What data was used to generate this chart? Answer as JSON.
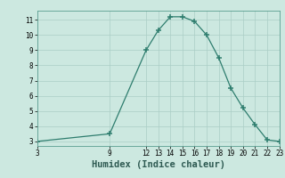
{
  "x": [
    3,
    9,
    12,
    13,
    14,
    15,
    16,
    17,
    18,
    19,
    20,
    21,
    22,
    23
  ],
  "y": [
    3.0,
    3.5,
    9.0,
    10.3,
    11.2,
    11.2,
    10.9,
    10.0,
    8.5,
    6.5,
    5.2,
    4.1,
    3.1,
    3.0
  ],
  "line_color": "#2e7d6e",
  "marker_color": "#2e7d6e",
  "bg_color": "#cce8e0",
  "grid_color": "#aacec6",
  "xlabel": "Humidex (Indice chaleur)",
  "xlim": [
    3,
    23
  ],
  "ylim": [
    2.7,
    11.6
  ],
  "xticks": [
    3,
    9,
    12,
    13,
    14,
    15,
    16,
    17,
    18,
    19,
    20,
    21,
    22,
    23
  ],
  "yticks": [
    3,
    4,
    5,
    6,
    7,
    8,
    9,
    10,
    11
  ],
  "tick_fontsize": 5.5,
  "xlabel_fontsize": 7.5
}
